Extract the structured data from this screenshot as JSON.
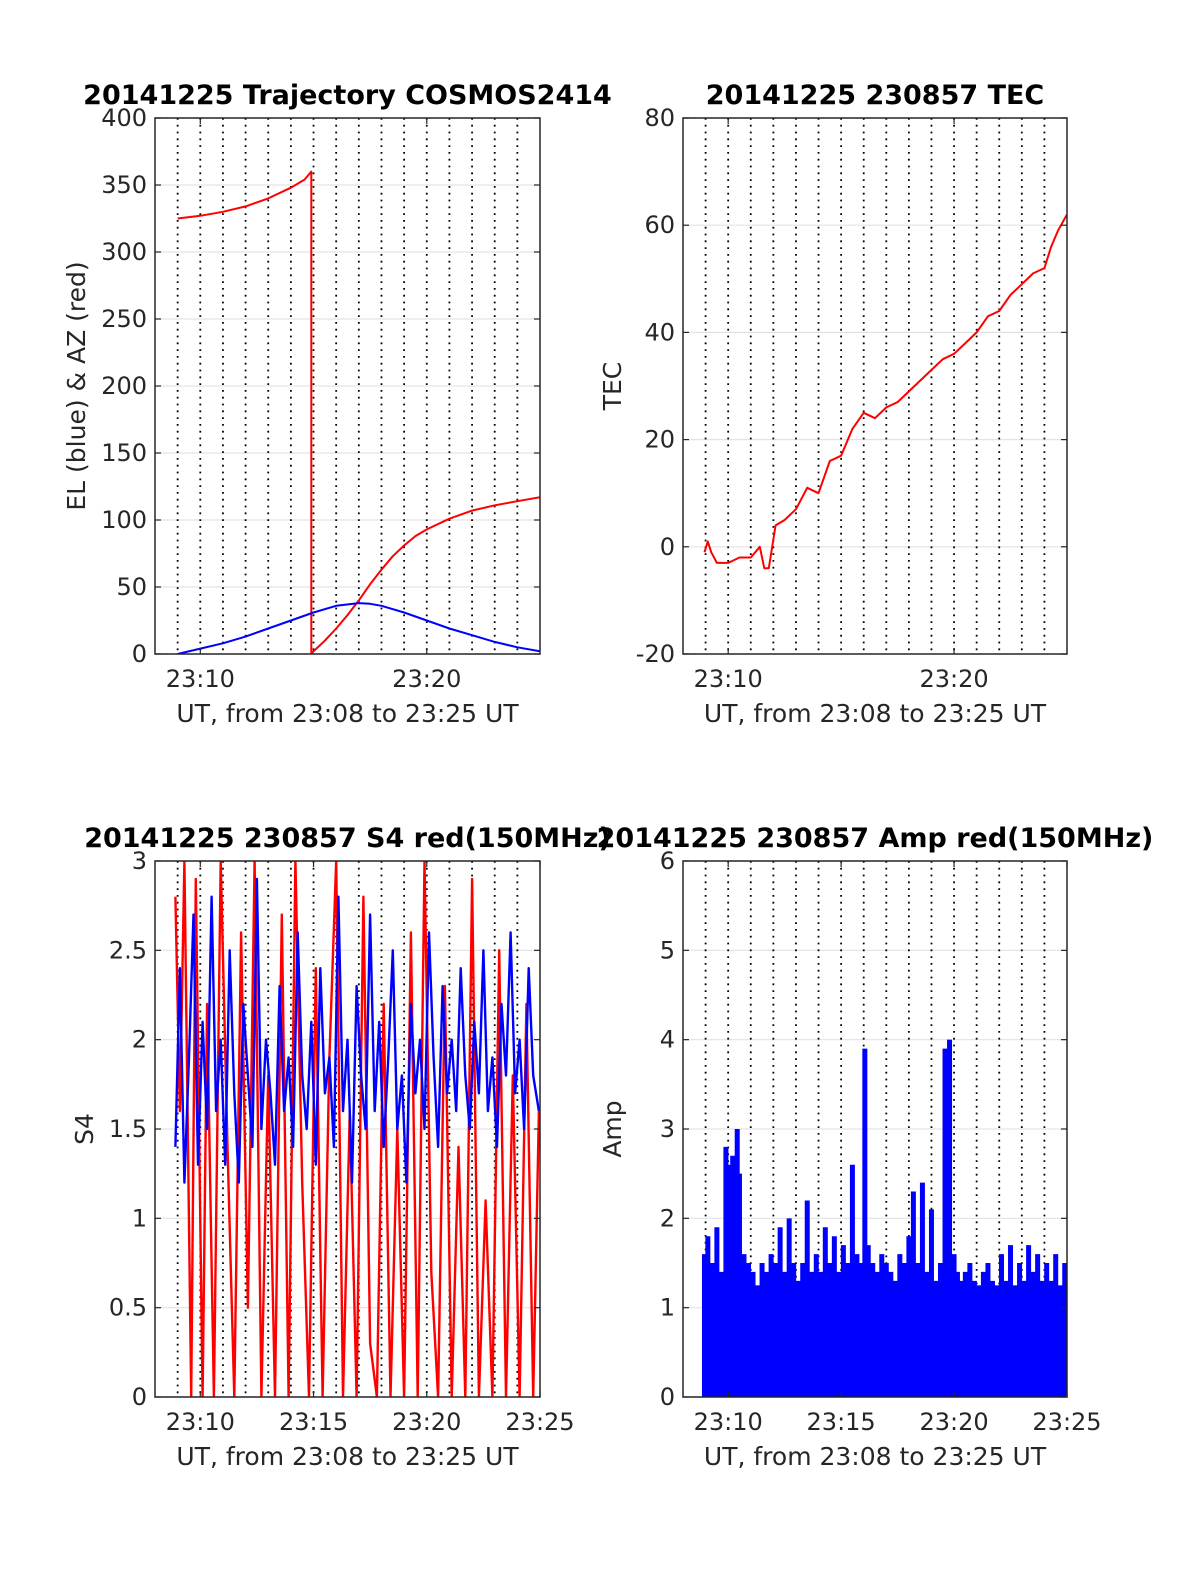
{
  "chart_data": [
    {
      "type": "line",
      "title": "20141225 Trajectory COSMOS2414",
      "xlabel": "UT, from 23:08 to 23:25 UT",
      "ylabel": "EL (blue) & AZ (red)",
      "xlim": [
        8.0,
        25.0
      ],
      "ylim": [
        0,
        400
      ],
      "xticks": [
        {
          "value": 10,
          "label": "23:10"
        },
        {
          "value": 20,
          "label": "23:20"
        }
      ],
      "yticks": [
        0,
        50,
        100,
        150,
        200,
        250,
        300,
        350,
        400
      ],
      "grid": {
        "y": true,
        "x_dotted_every_minute": true
      },
      "series": [
        {
          "color": "#ff0000",
          "x": [
            9.0,
            10.0,
            11.0,
            12.0,
            13.0,
            14.0,
            14.6,
            14.9,
            14.901,
            15.0,
            15.5,
            16.0,
            16.5,
            17.0,
            17.5,
            18.0,
            18.5,
            19.0,
            19.5,
            20.0,
            21.0,
            22.0,
            23.0,
            24.0,
            25.0
          ],
          "y": [
            325,
            327,
            330,
            334,
            340,
            348,
            354,
            360,
            0,
            2,
            10,
            19,
            29,
            40,
            52,
            63,
            73,
            81,
            88,
            93,
            101,
            107,
            111,
            114,
            117
          ]
        },
        {
          "color": "#0000ff",
          "x": [
            9.0,
            10.0,
            11.0,
            12.0,
            13.0,
            14.0,
            15.0,
            16.0,
            17.0,
            17.5,
            18.0,
            19.0,
            20.0,
            21.0,
            22.0,
            23.0,
            24.0,
            25.0
          ],
          "y": [
            0,
            4,
            8,
            13,
            19,
            25,
            31,
            36,
            38,
            37.5,
            36,
            31,
            25,
            19,
            14,
            9,
            5,
            2
          ]
        }
      ]
    },
    {
      "type": "line",
      "title": "20141225 230857 TEC",
      "xlabel": "UT, from 23:08 to 23:25 UT",
      "ylabel": "TEC",
      "xlim": [
        8.0,
        25.0
      ],
      "ylim": [
        -20,
        80
      ],
      "xticks": [
        {
          "value": 10,
          "label": "23:10"
        },
        {
          "value": 20,
          "label": "23:20"
        }
      ],
      "yticks": [
        -20,
        0,
        20,
        40,
        60,
        80
      ],
      "grid": {
        "y": true,
        "x_dotted_every_minute": true
      },
      "series": [
        {
          "color": "#ff0000",
          "x": [
            8.95,
            9.1,
            9.25,
            9.5,
            10.0,
            10.5,
            11.0,
            11.4,
            11.6,
            11.8,
            12.1,
            12.5,
            13.0,
            13.5,
            14.0,
            14.5,
            15.0,
            15.5,
            16.0,
            16.5,
            17.0,
            17.5,
            18.0,
            18.5,
            19.0,
            19.5,
            20.0,
            20.5,
            21.0,
            21.5,
            22.0,
            22.5,
            23.0,
            23.5,
            24.0,
            24.3,
            24.6,
            25.0
          ],
          "y": [
            -1,
            1,
            -1,
            -3,
            -3,
            -2,
            -2,
            0,
            -4,
            -4,
            4,
            5,
            7,
            11,
            10,
            16,
            17,
            22,
            25,
            24,
            26,
            27,
            29,
            31,
            33,
            35,
            36,
            38,
            40,
            43,
            44,
            47,
            49,
            51,
            52,
            56,
            59,
            62
          ]
        }
      ]
    },
    {
      "type": "line",
      "title": "20141225 230857 S4 red(150MHz)",
      "xlabel": "UT, from 23:08 to 23:25 UT",
      "ylabel": "S4",
      "xlim": [
        8.0,
        25.0
      ],
      "ylim": [
        0,
        3
      ],
      "xticks": [
        {
          "value": 10,
          "label": "23:10"
        },
        {
          "value": 15,
          "label": "23:15"
        },
        {
          "value": 20,
          "label": "23:20"
        },
        {
          "value": 25,
          "label": "23:25"
        }
      ],
      "yticks": [
        0,
        0.5,
        1,
        1.5,
        2,
        2.5,
        3
      ],
      "ytick_labels": [
        "0",
        "0.5",
        "1",
        "1.5",
        "2",
        "2.5",
        "3"
      ],
      "grid": {
        "y": true,
        "x_dotted_every_minute": true
      },
      "series": [
        {
          "color": "#ff0000",
          "x": [
            8.9,
            9.1,
            9.3,
            9.6,
            9.8,
            10.1,
            10.3,
            10.6,
            10.9,
            11.2,
            11.5,
            11.8,
            12.1,
            12.4,
            12.7,
            13.0,
            13.3,
            13.6,
            13.9,
            14.2,
            14.5,
            14.8,
            15.1,
            15.4,
            15.7,
            16.0,
            16.3,
            16.6,
            16.9,
            17.2,
            17.5,
            17.8,
            18.1,
            18.4,
            18.7,
            19.0,
            19.3,
            19.6,
            19.9,
            20.2,
            20.5,
            20.8,
            21.1,
            21.4,
            21.7,
            22.0,
            22.3,
            22.6,
            22.9,
            23.2,
            23.5,
            23.8,
            24.1,
            24.4,
            24.7,
            24.95
          ],
          "y": [
            2.8,
            1.6,
            3.0,
            0.0,
            2.9,
            0.0,
            2.2,
            0.0,
            3.0,
            1.4,
            0.0,
            2.6,
            0.5,
            3.0,
            0.0,
            1.8,
            0.0,
            2.7,
            0.0,
            3.0,
            1.2,
            0.0,
            2.4,
            0.0,
            1.9,
            3.0,
            0.0,
            1.6,
            0.0,
            2.8,
            0.3,
            0.0,
            2.2,
            0.0,
            1.5,
            0.0,
            2.6,
            0.0,
            3.0,
            0.7,
            0.0,
            2.3,
            0.0,
            1.4,
            0.0,
            2.9,
            0.0,
            1.1,
            0.0,
            2.5,
            0.0,
            1.8,
            0.0,
            2.2,
            0.0,
            1.6
          ]
        },
        {
          "color": "#0000ff",
          "x": [
            8.9,
            9.1,
            9.3,
            9.5,
            9.7,
            9.9,
            10.1,
            10.3,
            10.5,
            10.7,
            10.9,
            11.1,
            11.3,
            11.5,
            11.7,
            11.9,
            12.1,
            12.3,
            12.5,
            12.7,
            12.9,
            13.1,
            13.3,
            13.5,
            13.7,
            13.9,
            14.1,
            14.3,
            14.5,
            14.7,
            14.9,
            15.1,
            15.3,
            15.5,
            15.7,
            15.9,
            16.1,
            16.3,
            16.5,
            16.7,
            16.9,
            17.1,
            17.3,
            17.5,
            17.7,
            17.9,
            18.1,
            18.3,
            18.5,
            18.7,
            18.9,
            19.1,
            19.3,
            19.5,
            19.7,
            19.9,
            20.1,
            20.3,
            20.5,
            20.7,
            20.9,
            21.1,
            21.3,
            21.5,
            21.7,
            21.9,
            22.1,
            22.3,
            22.5,
            22.7,
            22.9,
            23.1,
            23.3,
            23.5,
            23.7,
            23.9,
            24.1,
            24.3,
            24.5,
            24.7,
            24.95
          ],
          "y": [
            1.4,
            2.4,
            1.2,
            1.9,
            2.7,
            1.3,
            2.1,
            1.5,
            2.8,
            1.6,
            2.0,
            1.3,
            2.5,
            1.7,
            1.2,
            2.2,
            1.8,
            1.4,
            2.9,
            1.5,
            2.0,
            1.7,
            1.3,
            2.3,
            1.6,
            1.9,
            1.4,
            2.6,
            1.8,
            1.5,
            2.1,
            1.3,
            2.4,
            1.7,
            1.9,
            1.4,
            2.8,
            1.6,
            2.0,
            1.2,
            2.3,
            1.8,
            1.5,
            2.7,
            1.6,
            2.1,
            1.4,
            1.9,
            2.5,
            1.5,
            1.8,
            1.2,
            2.2,
            1.7,
            2.0,
            1.5,
            2.6,
            1.9,
            1.4,
            2.3,
            1.7,
            2.0,
            1.6,
            2.4,
            1.8,
            1.5,
            2.1,
            1.7,
            2.5,
            1.6,
            1.9,
            1.4,
            2.2,
            1.8,
            2.6,
            1.7,
            2.0,
            1.5,
            2.4,
            1.8,
            1.6
          ]
        }
      ]
    },
    {
      "type": "bar",
      "title": "20141225 230857 Amp red(150MHz)",
      "xlabel": "UT, from 23:08 to 23:25 UT",
      "ylabel": "Amp",
      "xlim": [
        8.0,
        25.0
      ],
      "ylim": [
        0,
        6
      ],
      "xticks": [
        {
          "value": 10,
          "label": "23:10"
        },
        {
          "value": 15,
          "label": "23:15"
        },
        {
          "value": 20,
          "label": "23:20"
        },
        {
          "value": 25,
          "label": "23:25"
        }
      ],
      "yticks": [
        0,
        1,
        2,
        3,
        4,
        5,
        6
      ],
      "grid": {
        "y": true,
        "x_dotted_every_minute": true
      },
      "series": [
        {
          "color": "#0000ff",
          "x": [
            8.95,
            9.1,
            9.3,
            9.5,
            9.7,
            9.9,
            10.0,
            10.2,
            10.4,
            10.5,
            10.7,
            10.9,
            11.1,
            11.3,
            11.5,
            11.7,
            11.9,
            12.1,
            12.3,
            12.5,
            12.7,
            12.9,
            13.1,
            13.3,
            13.5,
            13.7,
            13.9,
            14.1,
            14.3,
            14.5,
            14.7,
            14.9,
            15.1,
            15.3,
            15.5,
            15.7,
            15.9,
            16.05,
            16.2,
            16.4,
            16.6,
            16.8,
            17.0,
            17.2,
            17.4,
            17.6,
            17.8,
            18.0,
            18.2,
            18.4,
            18.6,
            18.8,
            19.0,
            19.2,
            19.4,
            19.6,
            19.8,
            20.0,
            20.15,
            20.3,
            20.5,
            20.7,
            20.9,
            21.1,
            21.3,
            21.5,
            21.7,
            21.9,
            22.1,
            22.3,
            22.5,
            22.7,
            22.9,
            23.1,
            23.3,
            23.5,
            23.7,
            23.9,
            24.1,
            24.3,
            24.5,
            24.7,
            24.9
          ],
          "y": [
            1.6,
            1.8,
            1.5,
            1.9,
            1.4,
            2.8,
            2.6,
            2.7,
            3.0,
            2.5,
            1.6,
            1.5,
            1.4,
            1.2,
            1.5,
            1.4,
            1.6,
            1.5,
            1.9,
            1.4,
            2.0,
            1.5,
            1.3,
            1.5,
            2.2,
            1.4,
            1.6,
            1.4,
            1.9,
            1.5,
            1.8,
            1.4,
            1.7,
            1.5,
            2.6,
            1.6,
            1.5,
            3.9,
            1.7,
            1.5,
            1.4,
            1.6,
            1.5,
            1.4,
            1.3,
            1.6,
            1.5,
            1.8,
            2.3,
            1.5,
            2.4,
            1.4,
            2.1,
            1.3,
            1.5,
            3.9,
            4.0,
            1.6,
            1.4,
            1.3,
            1.4,
            1.5,
            1.3,
            1.2,
            1.4,
            1.5,
            1.3,
            1.2,
            1.6,
            1.3,
            1.7,
            1.2,
            1.5,
            1.3,
            1.7,
            1.4,
            1.6,
            1.3,
            1.5,
            1.3,
            1.6,
            1.2,
            1.5
          ]
        }
      ]
    }
  ]
}
